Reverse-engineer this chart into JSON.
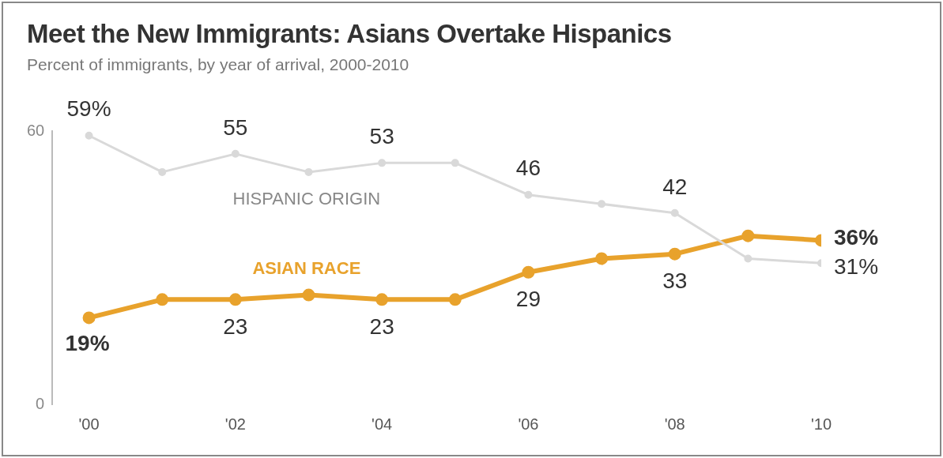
{
  "chart_data": {
    "type": "line",
    "title": "Meet the New Immigrants: Asians Overtake Hispanics",
    "subtitle": "Percent of immigrants, by year of arrival, 2000-2010",
    "x": [
      2000,
      2001,
      2002,
      2003,
      2004,
      2005,
      2006,
      2007,
      2008,
      2009,
      2010
    ],
    "xlim": [
      1999.5,
      2010
    ],
    "xticks": [
      {
        "value": 2000,
        "label": "'00"
      },
      {
        "value": 2002,
        "label": "'02"
      },
      {
        "value": 2004,
        "label": "'04"
      },
      {
        "value": 2006,
        "label": "'06"
      },
      {
        "value": 2008,
        "label": "'08"
      },
      {
        "value": 2010,
        "label": "'10"
      }
    ],
    "ylim": [
      0,
      60
    ],
    "yticks": [
      0,
      60
    ],
    "grid": false,
    "legend": false,
    "marker": "circle",
    "line_style": "solid",
    "series": [
      {
        "name": "HISPANIC ORIGIN",
        "color": "#d9d9d9",
        "values": [
          59,
          51,
          55,
          51,
          53,
          53,
          46,
          44,
          42,
          32,
          31
        ],
        "value_labels": [
          "59%",
          null,
          "55",
          null,
          "53",
          null,
          "46",
          null,
          "42",
          null,
          "31%"
        ]
      },
      {
        "name": "ASIAN RACE",
        "color": "#e8a22c",
        "values": [
          19,
          23,
          23,
          24,
          23,
          23,
          29,
          32,
          33,
          37,
          36
        ],
        "value_labels": [
          "19%",
          null,
          "23",
          null,
          "23",
          null,
          "29",
          null,
          "33",
          null,
          "36%"
        ]
      }
    ]
  }
}
